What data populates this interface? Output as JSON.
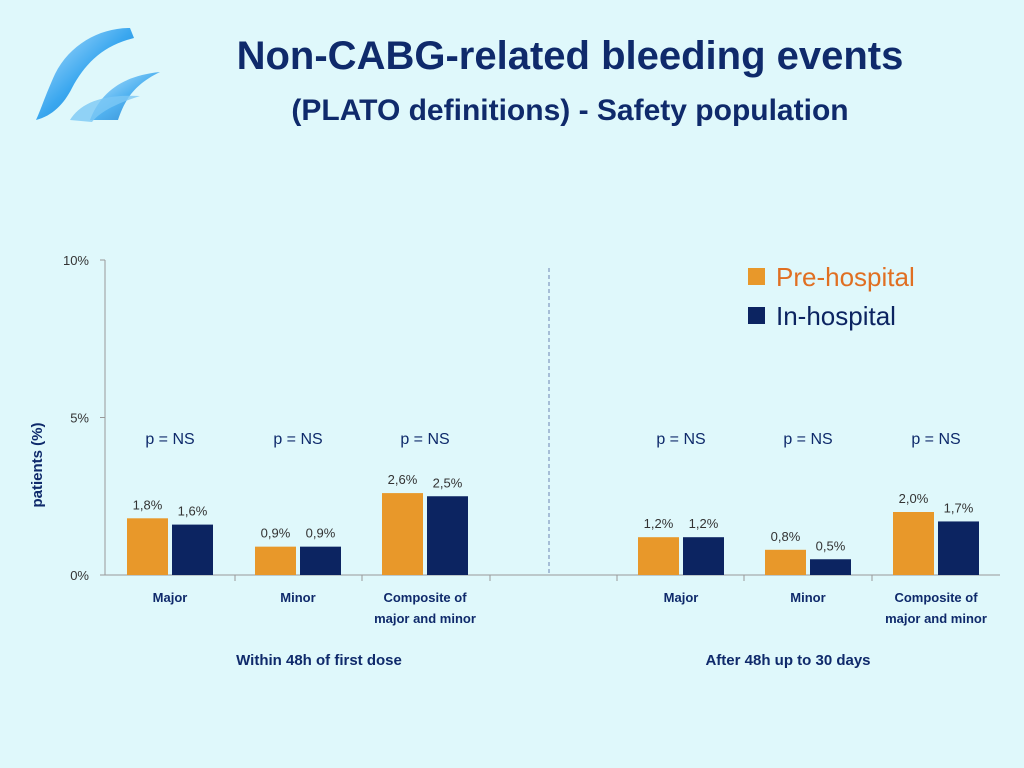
{
  "slide": {
    "title": "Non-CABG-related bleeding events",
    "subtitle": "(PLATO definitions) - Safety population",
    "logo_icon": "wave-logo-icon"
  },
  "colors": {
    "pre": "#e8982a",
    "in": "#0c2461",
    "text": "#0f2a6b",
    "legend_pre": "#e06f22"
  },
  "chart_data": {
    "type": "bar",
    "ylabel": "patients (%)",
    "ylim": [
      0,
      10
    ],
    "yticks": [
      "0%",
      "5%",
      "10%"
    ],
    "ytick_values": [
      0,
      5,
      10
    ],
    "legend": [
      "Pre-hospital",
      "In-hospital"
    ],
    "legend_position": "top-right",
    "series": [
      {
        "name": "Pre-hospital",
        "values": [
          1.8,
          0.9,
          2.6,
          1.2,
          0.8,
          2.0
        ],
        "labels": [
          "1,8%",
          "0,9%",
          "2,6%",
          "1,2%",
          "0,8%",
          "2,0%"
        ]
      },
      {
        "name": "In-hospital",
        "values": [
          1.6,
          0.9,
          2.5,
          1.2,
          0.5,
          1.7
        ],
        "labels": [
          "1,6%",
          "0,9%",
          "2,5%",
          "1,2%",
          "0,5%",
          "1,7%"
        ]
      }
    ],
    "categories": [
      [
        "Major"
      ],
      [
        "Minor"
      ],
      [
        "Composite of",
        "major and minor"
      ],
      [
        "Major"
      ],
      [
        "Minor"
      ],
      [
        "Composite of",
        "major and minor"
      ]
    ],
    "p_values": [
      "p = NS",
      "p = NS",
      "p = NS",
      "p = NS",
      "p = NS",
      "p = NS"
    ],
    "groups": [
      "Within 48h of first dose",
      "After 48h up to 30 days"
    ],
    "grid": false
  }
}
